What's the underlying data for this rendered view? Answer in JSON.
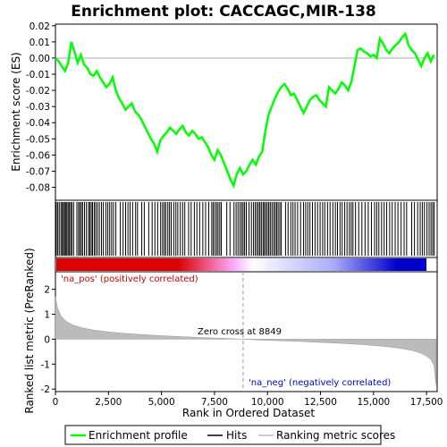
{
  "chart_data": {
    "type": "line",
    "title": "Enrichment plot: CACCAGC,MIR-138",
    "x_label": "Rank in Ordered Dataset",
    "es_panel": {
      "ylabel": "Enrichment score (ES)",
      "ylim": [
        -0.088,
        0.021
      ],
      "y_ticks": [
        "0.02",
        "0.01",
        "0.00",
        "-0.01",
        "-0.02",
        "-0.03",
        "-0.04",
        "-0.05",
        "-0.06",
        "-0.07",
        "-0.08"
      ],
      "y_tick_values": [
        0.02,
        0.01,
        0.0,
        -0.01,
        -0.02,
        -0.03,
        -0.04,
        -0.05,
        -0.06,
        -0.07,
        -0.08
      ],
      "line_color": "#00ff00",
      "series": [
        {
          "name": "Enrichment profile",
          "x": [
            0,
            150,
            300,
            450,
            600,
            750,
            900,
            1050,
            1200,
            1350,
            1500,
            1650,
            1800,
            1950,
            2100,
            2250,
            2400,
            2550,
            2700,
            2850,
            3000,
            3150,
            3300,
            3450,
            3600,
            3750,
            3900,
            4050,
            4200,
            4350,
            4500,
            4650,
            4800,
            4950,
            5100,
            5250,
            5400,
            5550,
            5700,
            5850,
            6000,
            6150,
            6300,
            6450,
            6600,
            6750,
            6900,
            7050,
            7200,
            7350,
            7500,
            7650,
            7800,
            7950,
            8100,
            8250,
            8400,
            8550,
            8700,
            8850,
            9000,
            9150,
            9300,
            9450,
            9600,
            9750,
            9900,
            10050,
            10200,
            10350,
            10500,
            10650,
            10800,
            10950,
            11100,
            11250,
            11400,
            11550,
            11700,
            11850,
            12000,
            12150,
            12300,
            12450,
            12600,
            12750,
            12900,
            13050,
            13200,
            13350,
            13500,
            13650,
            13800,
            13950,
            14100,
            14250,
            14400,
            14550,
            14700,
            14850,
            15000,
            15150,
            15300,
            15450,
            15600,
            15750,
            15900,
            16050,
            16200,
            16350,
            16500,
            16650,
            16800,
            16950,
            17100,
            17250,
            17400,
            17550,
            17700,
            17850
          ],
          "y": [
            0.0,
            -0.002,
            -0.005,
            -0.008,
            -0.003,
            0.01,
            0.004,
            -0.003,
            0.002,
            -0.004,
            -0.006,
            -0.01,
            -0.011,
            -0.008,
            -0.012,
            -0.015,
            -0.018,
            -0.016,
            -0.012,
            -0.02,
            -0.025,
            -0.028,
            -0.032,
            -0.03,
            -0.028,
            -0.033,
            -0.035,
            -0.038,
            -0.042,
            -0.046,
            -0.05,
            -0.053,
            -0.058,
            -0.051,
            -0.048,
            -0.046,
            -0.043,
            -0.045,
            -0.047,
            -0.044,
            -0.042,
            -0.046,
            -0.048,
            -0.045,
            -0.047,
            -0.05,
            -0.049,
            -0.052,
            -0.055,
            -0.06,
            -0.063,
            -0.057,
            -0.06,
            -0.065,
            -0.07,
            -0.075,
            -0.079,
            -0.072,
            -0.068,
            -0.072,
            -0.07,
            -0.066,
            -0.063,
            -0.066,
            -0.061,
            -0.058,
            -0.045,
            -0.035,
            -0.03,
            -0.025,
            -0.021,
            -0.018,
            -0.016,
            -0.019,
            -0.023,
            -0.022,
            -0.026,
            -0.03,
            -0.034,
            -0.03,
            -0.026,
            -0.024,
            -0.023,
            -0.026,
            -0.028,
            -0.03,
            -0.018,
            -0.02,
            -0.022,
            -0.019,
            -0.015,
            -0.017,
            -0.02,
            -0.015,
            -0.005,
            0.005,
            0.006,
            0.004,
            0.003,
            0.001,
            0.002,
            0.0,
            0.012,
            0.009,
            0.005,
            0.003,
            0.006,
            0.008,
            0.01,
            0.013,
            0.015,
            0.008,
            0.005,
            0.003,
            -0.001,
            -0.005,
            0.0,
            0.003,
            -0.002,
            0.002
          ]
        }
      ]
    },
    "hits_panel": {
      "hit_ranks": [
        40,
        110,
        180,
        260,
        320,
        380,
        430,
        490,
        540,
        600,
        660,
        720,
        780,
        860,
        1010,
        1090,
        1150,
        1220,
        1280,
        1370,
        1460,
        1560,
        1620,
        1690,
        1750,
        1830,
        1900,
        1980,
        2070,
        2170,
        2260,
        2380,
        2470,
        2560,
        2650,
        2740,
        2850,
        3060,
        3190,
        3310,
        3420,
        3520,
        3640,
        3780,
        3870,
        4070,
        4190,
        4400,
        4560,
        4690,
        4820,
        4960,
        5050,
        5130,
        5200,
        5300,
        5380,
        5460,
        5580,
        5680,
        5770,
        5890,
        6000,
        6100,
        6280,
        6400,
        6550,
        6670,
        6800,
        6950,
        7080,
        7230,
        7370,
        7440,
        7520,
        7600,
        7670,
        7750,
        7820,
        8080,
        8230,
        8420,
        8520,
        8610,
        8700,
        8780,
        8850,
        8920,
        9000,
        9130,
        9240,
        9340,
        9420,
        9500,
        9570,
        9640,
        9710,
        9790,
        9850,
        9920,
        9990,
        10060,
        10130,
        10210,
        10290,
        10360,
        10430,
        10500,
        10580,
        10650,
        10850,
        10970,
        11100,
        11200,
        11300,
        11420,
        11560,
        11700,
        11800,
        11900,
        12000,
        12120,
        12240,
        12360,
        12480,
        12600,
        12700,
        12830,
        12950,
        13080,
        13200,
        13300,
        13420,
        13520,
        13640,
        13750,
        13860,
        13950,
        14030,
        14150,
        14300,
        14450,
        14600,
        14750,
        14900,
        15050,
        15150,
        15250,
        15380,
        15500,
        15620,
        15760,
        15880,
        16020,
        16150,
        16300,
        16440,
        16560,
        16800,
        16930,
        17080,
        17200,
        17300,
        17400,
        17520,
        17620,
        17710,
        17790,
        17860
      ],
      "ranking_bar_colors": [
        "#dd0000",
        "#ffaaff",
        "#aaaaff",
        "#0000cc"
      ],
      "pos_label": "'na_pos' (positively correlated)",
      "neg_label": "'na_neg' (negatively correlated)"
    },
    "metric_panel": {
      "ylabel": "Ranked list metric (PreRanked)",
      "ylim": [
        -2.1,
        2.7
      ],
      "y_ticks": [
        "2",
        "1",
        "0",
        "-1",
        "-2"
      ],
      "y_tick_values": [
        2,
        1,
        0,
        -1,
        -2
      ],
      "fill_color": "#bbbbbb",
      "zero_cross_label": "Zero cross at 8849",
      "zero_cross": 8849,
      "x": [
        0,
        100,
        250,
        500,
        800,
        1200,
        1700,
        2300,
        3000,
        4000,
        5000,
        6000,
        7000,
        8000,
        8849,
        9500,
        10500,
        11500,
        12500,
        13500,
        14500,
        15500,
        16200,
        16800,
        17200,
        17500,
        17700,
        17850,
        17950
      ],
      "y": [
        1.7,
        1.25,
        0.95,
        0.72,
        0.58,
        0.47,
        0.38,
        0.31,
        0.25,
        0.19,
        0.14,
        0.1,
        0.06,
        0.03,
        0.0,
        -0.03,
        -0.06,
        -0.09,
        -0.13,
        -0.17,
        -0.22,
        -0.29,
        -0.36,
        -0.45,
        -0.55,
        -0.68,
        -0.82,
        -1.05,
        -1.85
      ]
    },
    "x_axis": {
      "xlim": [
        0,
        18000
      ],
      "ticks": [
        "0",
        "2,500",
        "5,000",
        "7,500",
        "10,000",
        "12,500",
        "15,000",
        "17,500"
      ],
      "tick_values": [
        0,
        2500,
        5000,
        7500,
        10000,
        12500,
        15000,
        17500
      ]
    },
    "legend": {
      "items": [
        {
          "label": "Enrichment profile",
          "color": "#00ff00"
        },
        {
          "label": "Hits",
          "color": "#000000"
        },
        {
          "label": "Ranking metric scores",
          "color": "#bbbbbb"
        }
      ],
      "placement": "bottom"
    }
  }
}
